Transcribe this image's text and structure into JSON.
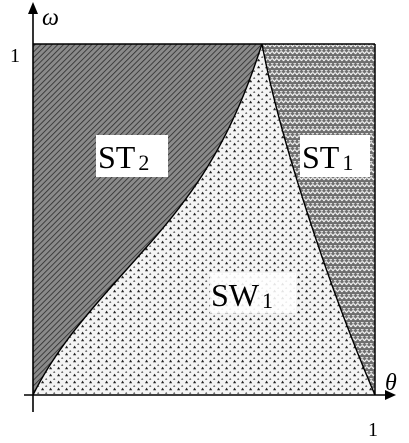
{
  "figure": {
    "axes": {
      "x_symbol": "θ",
      "y_symbol": "ω",
      "x_tick_label": "1",
      "y_tick_label": "1",
      "x_range": [
        0,
        1
      ],
      "y_range": [
        0,
        1
      ]
    },
    "regions": [
      {
        "id": "st2",
        "label_main": "ST",
        "label_sub": "2",
        "pattern": "diagonal-hatch"
      },
      {
        "id": "sw1",
        "label_main": "SW",
        "label_sub": "1",
        "pattern": "triangle-dots"
      },
      {
        "id": "st1",
        "label_main": "ST",
        "label_sub": "1",
        "pattern": "scales"
      }
    ],
    "colors": {
      "ink": "#000000",
      "paper": "#ffffff",
      "hatch_background": "#8a8a8a",
      "dots_background": "#f4f4f4",
      "scales_background": "#6e6e6e"
    }
  }
}
